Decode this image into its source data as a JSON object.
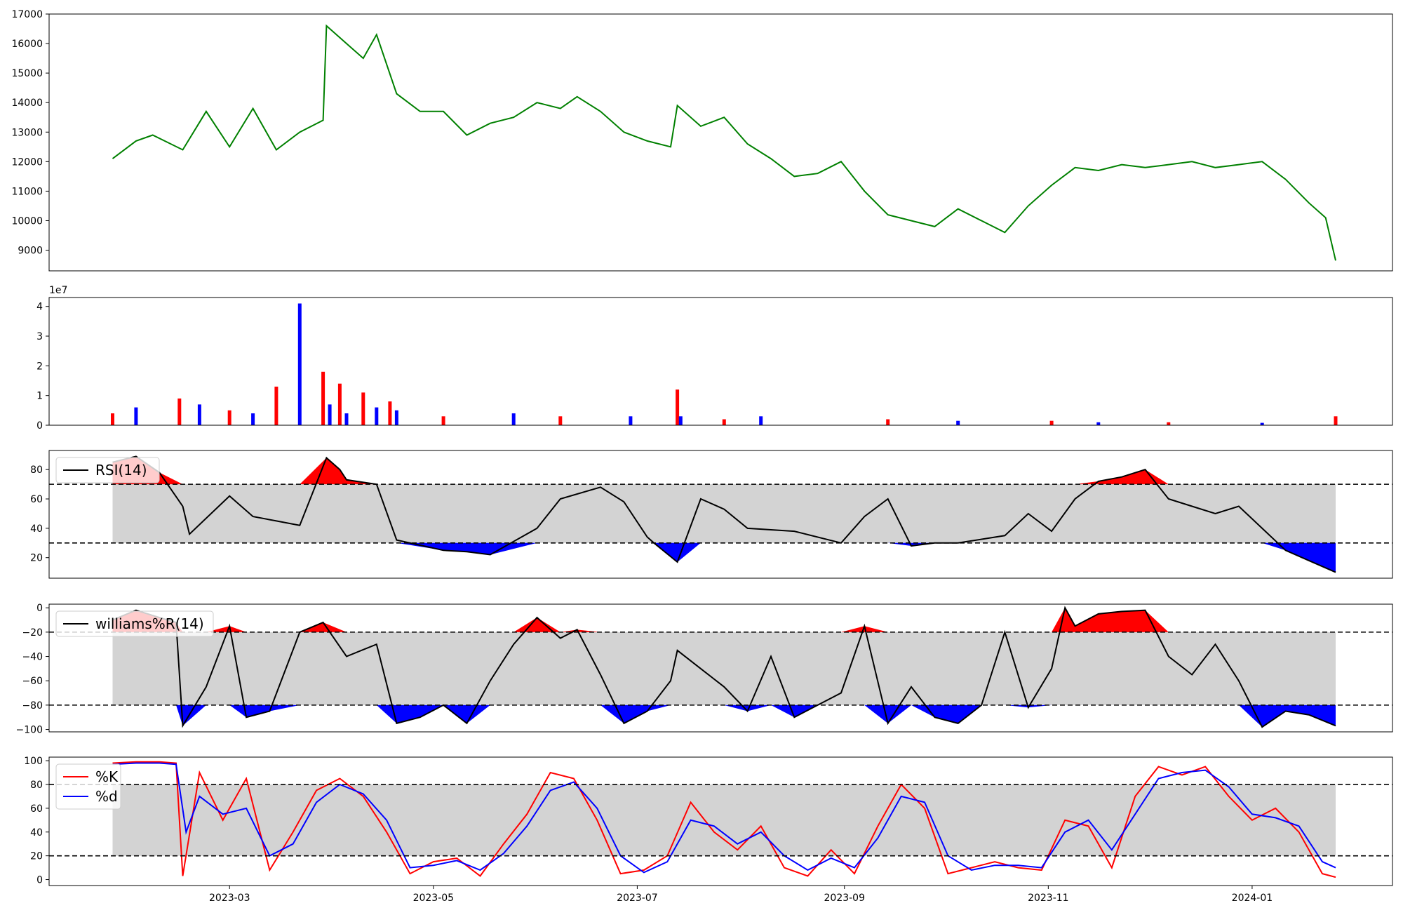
{
  "chart_data": [
    {
      "panel": "price",
      "type": "line",
      "y_ticks": [
        "17000",
        "16000",
        "15000",
        "14000",
        "13000",
        "12000",
        "11000",
        "10000",
        "9000"
      ],
      "ylim": [
        8300,
        17000
      ],
      "colors": {
        "line": "#008000"
      },
      "series": [
        {
          "x": [
            "2023-01-25",
            "2023-02-01",
            "2023-02-06",
            "2023-02-15",
            "2023-02-22",
            "2023-03-01",
            "2023-03-08",
            "2023-03-15",
            "2023-03-22",
            "2023-03-29",
            "2023-03-30",
            "2023-04-05",
            "2023-04-10",
            "2023-04-14",
            "2023-04-20",
            "2023-04-27",
            "2023-05-04",
            "2023-05-11",
            "2023-05-18",
            "2023-05-25",
            "2023-06-01",
            "2023-06-08",
            "2023-06-13",
            "2023-06-20",
            "2023-06-27",
            "2023-07-04",
            "2023-07-11",
            "2023-07-13",
            "2023-07-20",
            "2023-07-27",
            "2023-08-03",
            "2023-08-10",
            "2023-08-17",
            "2023-08-24",
            "2023-08-31",
            "2023-09-07",
            "2023-09-14",
            "2023-09-21",
            "2023-09-28",
            "2023-10-05",
            "2023-10-12",
            "2023-10-19",
            "2023-10-26",
            "2023-11-02",
            "2023-11-09",
            "2023-11-16",
            "2023-11-23",
            "2023-11-30",
            "2023-12-07",
            "2023-12-14",
            "2023-12-21",
            "2023-12-28",
            "2024-01-04",
            "2024-01-11",
            "2024-01-18",
            "2024-01-23",
            "2024-01-26"
          ],
          "values": [
            12100,
            12700,
            12900,
            12400,
            13700,
            12500,
            13800,
            12400,
            13000,
            13400,
            16600,
            16000,
            15500,
            16300,
            14300,
            13700,
            13700,
            12900,
            13300,
            13500,
            14000,
            13800,
            14200,
            13700,
            13000,
            12700,
            12500,
            13900,
            13200,
            13500,
            12600,
            12100,
            11500,
            11600,
            12000,
            11000,
            10200,
            10000,
            9800,
            10400,
            10000,
            9600,
            10500,
            11200,
            11800,
            11700,
            11900,
            11800,
            11900,
            12000,
            11800,
            11900,
            12000,
            11400,
            10600,
            10100,
            8650
          ]
        }
      ]
    },
    {
      "panel": "volume",
      "type": "bar",
      "offset_label": "1e7",
      "y_ticks": [
        "4",
        "3",
        "2",
        "1",
        "0"
      ],
      "ylim": [
        0,
        4.3
      ],
      "colors": {
        "up": "#ff0000",
        "down": "#0000ff"
      },
      "series": [
        {
          "x": [
            "2023-01-25",
            "2023-02-01",
            "2023-02-14",
            "2023-02-20",
            "2023-03-01",
            "2023-03-08",
            "2023-03-15",
            "2023-03-22",
            "2023-03-29",
            "2023-03-31",
            "2023-04-03",
            "2023-04-05",
            "2023-04-10",
            "2023-04-14",
            "2023-04-18",
            "2023-04-20",
            "2023-05-04",
            "2023-05-25",
            "2023-06-08",
            "2023-06-29",
            "2023-07-13",
            "2023-07-14",
            "2023-07-27",
            "2023-08-07",
            "2023-09-14",
            "2023-10-05",
            "2023-11-02",
            "2023-11-16",
            "2023-12-07",
            "2024-01-04",
            "2024-01-26"
          ],
          "values": [
            0.4,
            0.6,
            0.9,
            0.7,
            0.5,
            0.4,
            1.3,
            4.1,
            1.8,
            0.7,
            1.4,
            0.4,
            1.1,
            0.6,
            0.8,
            0.5,
            0.3,
            0.4,
            0.3,
            0.3,
            1.2,
            0.3,
            0.2,
            0.3,
            0.2,
            0.15,
            0.15,
            0.1,
            0.1,
            0.08,
            0.3
          ]
        }
      ]
    },
    {
      "panel": "rsi",
      "type": "line",
      "y_ticks": [
        "80",
        "60",
        "40",
        "20"
      ],
      "ylim": [
        6,
        93
      ],
      "thresholds": [
        30,
        70
      ],
      "colors": {
        "line": "#000000",
        "over": "#ff0000",
        "under": "#0000ff",
        "band": "#d3d3d3"
      },
      "legend": [
        "RSI(14)"
      ],
      "series": [
        {
          "name": "RSI(14)",
          "x": [
            "2023-01-25",
            "2023-02-01",
            "2023-02-08",
            "2023-02-15",
            "2023-02-17",
            "2023-03-01",
            "2023-03-08",
            "2023-03-15",
            "2023-03-22",
            "2023-03-30",
            "2023-04-03",
            "2023-04-05",
            "2023-04-14",
            "2023-04-20",
            "2023-05-04",
            "2023-05-11",
            "2023-05-18",
            "2023-06-01",
            "2023-06-08",
            "2023-06-20",
            "2023-06-27",
            "2023-07-04",
            "2023-07-06",
            "2023-07-13",
            "2023-07-20",
            "2023-07-27",
            "2023-08-03",
            "2023-08-17",
            "2023-08-31",
            "2023-09-07",
            "2023-09-14",
            "2023-09-21",
            "2023-09-28",
            "2023-10-05",
            "2023-10-19",
            "2023-10-26",
            "2023-11-02",
            "2023-11-09",
            "2023-11-16",
            "2023-11-23",
            "2023-11-30",
            "2023-12-07",
            "2023-12-14",
            "2023-12-21",
            "2023-12-28",
            "2024-01-04",
            "2024-01-11",
            "2024-01-18",
            "2024-01-26"
          ],
          "values": [
            85,
            89,
            78,
            55,
            36,
            62,
            48,
            45,
            42,
            88,
            80,
            73,
            70,
            32,
            25,
            24,
            22,
            40,
            60,
            68,
            58,
            34,
            30,
            17,
            60,
            53,
            40,
            38,
            30,
            48,
            60,
            28,
            30,
            30,
            35,
            50,
            38,
            60,
            72,
            75,
            80,
            60,
            55,
            50,
            55,
            40,
            25,
            18,
            10
          ]
        }
      ]
    },
    {
      "panel": "williams",
      "type": "line",
      "y_ticks": [
        "0",
        "−20",
        "−40",
        "−60",
        "−80",
        "−100"
      ],
      "ylim": [
        -102,
        3
      ],
      "thresholds": [
        -80,
        -20
      ],
      "colors": {
        "line": "#000000",
        "over": "#ff0000",
        "under": "#0000ff",
        "band": "#d3d3d3"
      },
      "legend": [
        "williams%R(14)"
      ],
      "series": [
        {
          "name": "williams%R(14)",
          "x": [
            "2023-01-25",
            "2023-02-01",
            "2023-02-08",
            "2023-02-13",
            "2023-02-15",
            "2023-02-22",
            "2023-03-01",
            "2023-03-06",
            "2023-03-13",
            "2023-03-22",
            "2023-03-29",
            "2023-04-05",
            "2023-04-14",
            "2023-04-20",
            "2023-04-27",
            "2023-05-04",
            "2023-05-11",
            "2023-05-18",
            "2023-05-25",
            "2023-06-01",
            "2023-06-08",
            "2023-06-13",
            "2023-06-20",
            "2023-06-27",
            "2023-07-04",
            "2023-07-11",
            "2023-07-13",
            "2023-07-20",
            "2023-07-27",
            "2023-08-03",
            "2023-08-10",
            "2023-08-17",
            "2023-08-24",
            "2023-08-31",
            "2023-09-07",
            "2023-09-14",
            "2023-09-21",
            "2023-09-28",
            "2023-10-05",
            "2023-10-12",
            "2023-10-19",
            "2023-10-26",
            "2023-11-02",
            "2023-11-06",
            "2023-11-09",
            "2023-11-16",
            "2023-11-23",
            "2023-11-30",
            "2023-12-07",
            "2023-12-14",
            "2023-12-21",
            "2023-12-28",
            "2024-01-04",
            "2024-01-11",
            "2024-01-18",
            "2024-01-26"
          ],
          "values": [
            -10,
            -2,
            -8,
            -12,
            -97,
            -65,
            -15,
            -90,
            -85,
            -20,
            -12,
            -40,
            -30,
            -95,
            -90,
            -80,
            -95,
            -60,
            -30,
            -8,
            -25,
            -18,
            -55,
            -95,
            -85,
            -60,
            -35,
            -50,
            -65,
            -85,
            -40,
            -90,
            -80,
            -70,
            -15,
            -95,
            -65,
            -90,
            -95,
            -80,
            -20,
            -82,
            -50,
            0,
            -15,
            -5,
            -3,
            -2,
            -40,
            -55,
            -30,
            -60,
            -98,
            -85,
            -88,
            -97
          ]
        }
      ]
    },
    {
      "panel": "stochastic",
      "type": "line",
      "y_ticks": [
        "100",
        "80",
        "60",
        "40",
        "20",
        "0"
      ],
      "ylim": [
        -5,
        103
      ],
      "thresholds": [
        20,
        80
      ],
      "colors": {
        "band": "#d3d3d3"
      },
      "legend": [
        "%K",
        "%d"
      ],
      "x_ticks": [
        {
          "date": "2023-03-01",
          "label": "2023-03"
        },
        {
          "date": "2023-05-01",
          "label": "2023-05"
        },
        {
          "date": "2023-07-01",
          "label": "2023-07"
        },
        {
          "date": "2023-09-01",
          "label": "2023-09"
        },
        {
          "date": "2023-11-01",
          "label": "2023-11"
        },
        {
          "date": "2024-01-01",
          "label": "2024-01"
        }
      ],
      "xlim": [
        "2023-01-06",
        "2024-02-12"
      ],
      "series": [
        {
          "name": "%K",
          "color": "#ff0000",
          "x": [
            "2023-01-25",
            "2023-02-01",
            "2023-02-08",
            "2023-02-13",
            "2023-02-15",
            "2023-02-20",
            "2023-02-27",
            "2023-03-06",
            "2023-03-13",
            "2023-03-20",
            "2023-03-27",
            "2023-04-03",
            "2023-04-10",
            "2023-04-17",
            "2023-04-24",
            "2023-05-01",
            "2023-05-08",
            "2023-05-15",
            "2023-05-22",
            "2023-05-29",
            "2023-06-05",
            "2023-06-12",
            "2023-06-19",
            "2023-06-26",
            "2023-07-03",
            "2023-07-10",
            "2023-07-17",
            "2023-07-24",
            "2023-07-31",
            "2023-08-07",
            "2023-08-14",
            "2023-08-21",
            "2023-08-28",
            "2023-09-04",
            "2023-09-11",
            "2023-09-18",
            "2023-09-25",
            "2023-10-02",
            "2023-10-09",
            "2023-10-16",
            "2023-10-23",
            "2023-10-30",
            "2023-11-06",
            "2023-11-13",
            "2023-11-20",
            "2023-11-27",
            "2023-12-04",
            "2023-12-11",
            "2023-12-18",
            "2023-12-25",
            "2024-01-01",
            "2024-01-08",
            "2024-01-15",
            "2024-01-22",
            "2024-01-26"
          ],
          "values": [
            98,
            99,
            99,
            98,
            3,
            90,
            50,
            85,
            8,
            40,
            75,
            85,
            70,
            40,
            5,
            15,
            18,
            3,
            30,
            55,
            90,
            85,
            50,
            5,
            8,
            20,
            65,
            40,
            25,
            45,
            10,
            3,
            25,
            5,
            45,
            80,
            60,
            5,
            10,
            15,
            10,
            8,
            50,
            45,
            10,
            70,
            95,
            88,
            95,
            70,
            50,
            60,
            40,
            5,
            2
          ]
        },
        {
          "name": "%d",
          "color": "#0000ff",
          "x": [
            "2023-01-25",
            "2023-02-01",
            "2023-02-08",
            "2023-02-13",
            "2023-02-16",
            "2023-02-20",
            "2023-02-27",
            "2023-03-06",
            "2023-03-13",
            "2023-03-20",
            "2023-03-27",
            "2023-04-03",
            "2023-04-10",
            "2023-04-17",
            "2023-04-24",
            "2023-05-01",
            "2023-05-08",
            "2023-05-15",
            "2023-05-22",
            "2023-05-29",
            "2023-06-05",
            "2023-06-12",
            "2023-06-19",
            "2023-06-26",
            "2023-07-03",
            "2023-07-10",
            "2023-07-17",
            "2023-07-24",
            "2023-07-31",
            "2023-08-07",
            "2023-08-14",
            "2023-08-21",
            "2023-08-28",
            "2023-09-04",
            "2023-09-11",
            "2023-09-18",
            "2023-09-25",
            "2023-10-02",
            "2023-10-09",
            "2023-10-16",
            "2023-10-23",
            "2023-10-30",
            "2023-11-06",
            "2023-11-13",
            "2023-11-20",
            "2023-11-27",
            "2023-12-04",
            "2023-12-11",
            "2023-12-18",
            "2023-12-25",
            "2024-01-01",
            "2024-01-08",
            "2024-01-15",
            "2024-01-22",
            "2024-01-26"
          ],
          "values": [
            97,
            98,
            98,
            97,
            40,
            70,
            55,
            60,
            20,
            30,
            65,
            80,
            72,
            50,
            10,
            12,
            16,
            8,
            22,
            45,
            75,
            82,
            60,
            20,
            6,
            15,
            50,
            45,
            30,
            40,
            20,
            8,
            18,
            10,
            35,
            70,
            65,
            20,
            8,
            12,
            12,
            10,
            40,
            50,
            25,
            55,
            85,
            90,
            92,
            78,
            55,
            52,
            45,
            15,
            10
          ]
        }
      ]
    }
  ]
}
